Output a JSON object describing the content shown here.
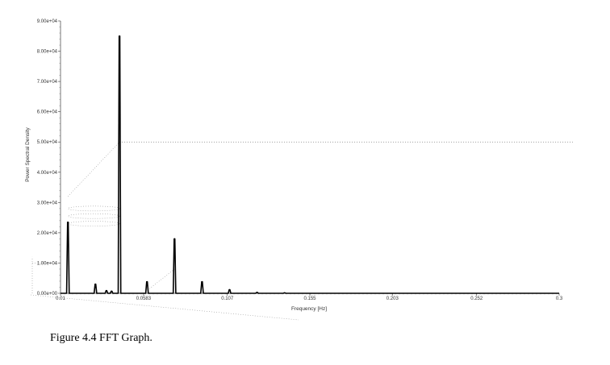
{
  "figure": {
    "caption": "Figure 4.4 FFT Graph."
  },
  "chart_data": {
    "type": "line",
    "title": "",
    "xlabel": "Frequency [Hz]",
    "ylabel": "Power Spectral Density",
    "xlim": [
      0.01,
      0.3
    ],
    "ylim": [
      0,
      90000
    ],
    "x_ticks": [
      0.01,
      0.0583,
      0.107,
      0.155,
      0.203,
      0.252,
      0.3
    ],
    "x_tick_labels": [
      "0.01",
      "0.0583",
      "0.107",
      "0.155",
      "0.203",
      "0.252",
      "0.3"
    ],
    "y_ticks": [
      0,
      10000,
      20000,
      30000,
      40000,
      50000,
      60000,
      70000,
      80000,
      90000
    ],
    "y_tick_labels": [
      "0.00e+00",
      "1.00e+04",
      "2.00e+04",
      "3.00e+04",
      "4.00e+04",
      "5.00e+04",
      "6.00e+04",
      "7.00e+04",
      "8.00e+04",
      "9.00e+04"
    ],
    "reference_line_y": 50000,
    "line_color": "#000000",
    "peaks": [
      {
        "x": 0.0143,
        "y": 23500
      },
      {
        "x": 0.0303,
        "y": 3000
      },
      {
        "x": 0.0367,
        "y": 900
      },
      {
        "x": 0.0397,
        "y": 700
      },
      {
        "x": 0.0443,
        "y": 85000
      },
      {
        "x": 0.0603,
        "y": 3800
      },
      {
        "x": 0.0763,
        "y": 18000
      },
      {
        "x": 0.0923,
        "y": 3800
      },
      {
        "x": 0.1083,
        "y": 1200
      },
      {
        "x": 0.1243,
        "y": 300
      },
      {
        "x": 0.1403,
        "y": 150
      }
    ]
  }
}
